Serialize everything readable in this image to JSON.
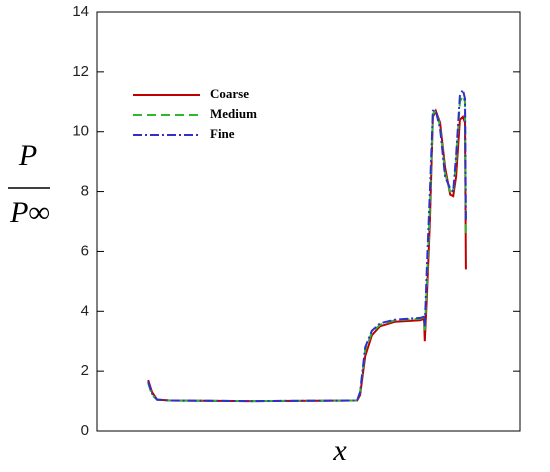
{
  "chart_data": {
    "type": "line",
    "ylabel_numerator": "P",
    "ylabel_denominator": "P∞",
    "xlabel": "x",
    "x": [
      12.1,
      13.0,
      14.2,
      17.3,
      36.2,
      61.5,
      62.2,
      63.4,
      65.0,
      66.9,
      70.4,
      76.4,
      77.3,
      77.5,
      78.0,
      78.7,
      79.4,
      80.1,
      81.1,
      82.3,
      83.5,
      84.2,
      84.9,
      85.8,
      86.5,
      87.0,
      87.2
    ],
    "series": [
      {
        "name": "Coarse",
        "color": "#c00000",
        "dash": "none",
        "values": [
          1.7,
          1.3,
          1.05,
          1.02,
          1.0,
          1.02,
          1.2,
          2.5,
          3.2,
          3.5,
          3.65,
          3.7,
          3.75,
          3.0,
          4.5,
          7.0,
          10.5,
          10.7,
          10.3,
          8.8,
          7.9,
          7.85,
          8.5,
          10.4,
          10.5,
          10.3,
          5.4
        ]
      },
      {
        "name": "Medium",
        "color": "#2fb82f",
        "dash": "9 5",
        "values": [
          1.6,
          1.2,
          1.05,
          1.02,
          1.0,
          1.02,
          1.3,
          2.7,
          3.3,
          3.55,
          3.7,
          3.75,
          3.8,
          3.3,
          5.0,
          7.5,
          10.6,
          10.7,
          10.2,
          8.6,
          8.0,
          7.95,
          9.0,
          11.0,
          11.2,
          11.0,
          6.5
        ]
      },
      {
        "name": "Fine",
        "color": "#3030c8",
        "dash": "9 3 2 3",
        "values": [
          1.65,
          1.25,
          1.05,
          1.02,
          1.0,
          1.02,
          1.3,
          2.8,
          3.35,
          3.6,
          3.72,
          3.78,
          3.82,
          3.5,
          5.5,
          8.0,
          10.7,
          10.7,
          10.1,
          8.5,
          8.1,
          8.0,
          9.2,
          11.2,
          11.4,
          11.1,
          7.0
        ]
      }
    ],
    "xlim": [
      0,
      100
    ],
    "ylim": [
      0,
      14
    ],
    "yticks": [
      0,
      2,
      4,
      6,
      8,
      10,
      12,
      14
    ]
  }
}
